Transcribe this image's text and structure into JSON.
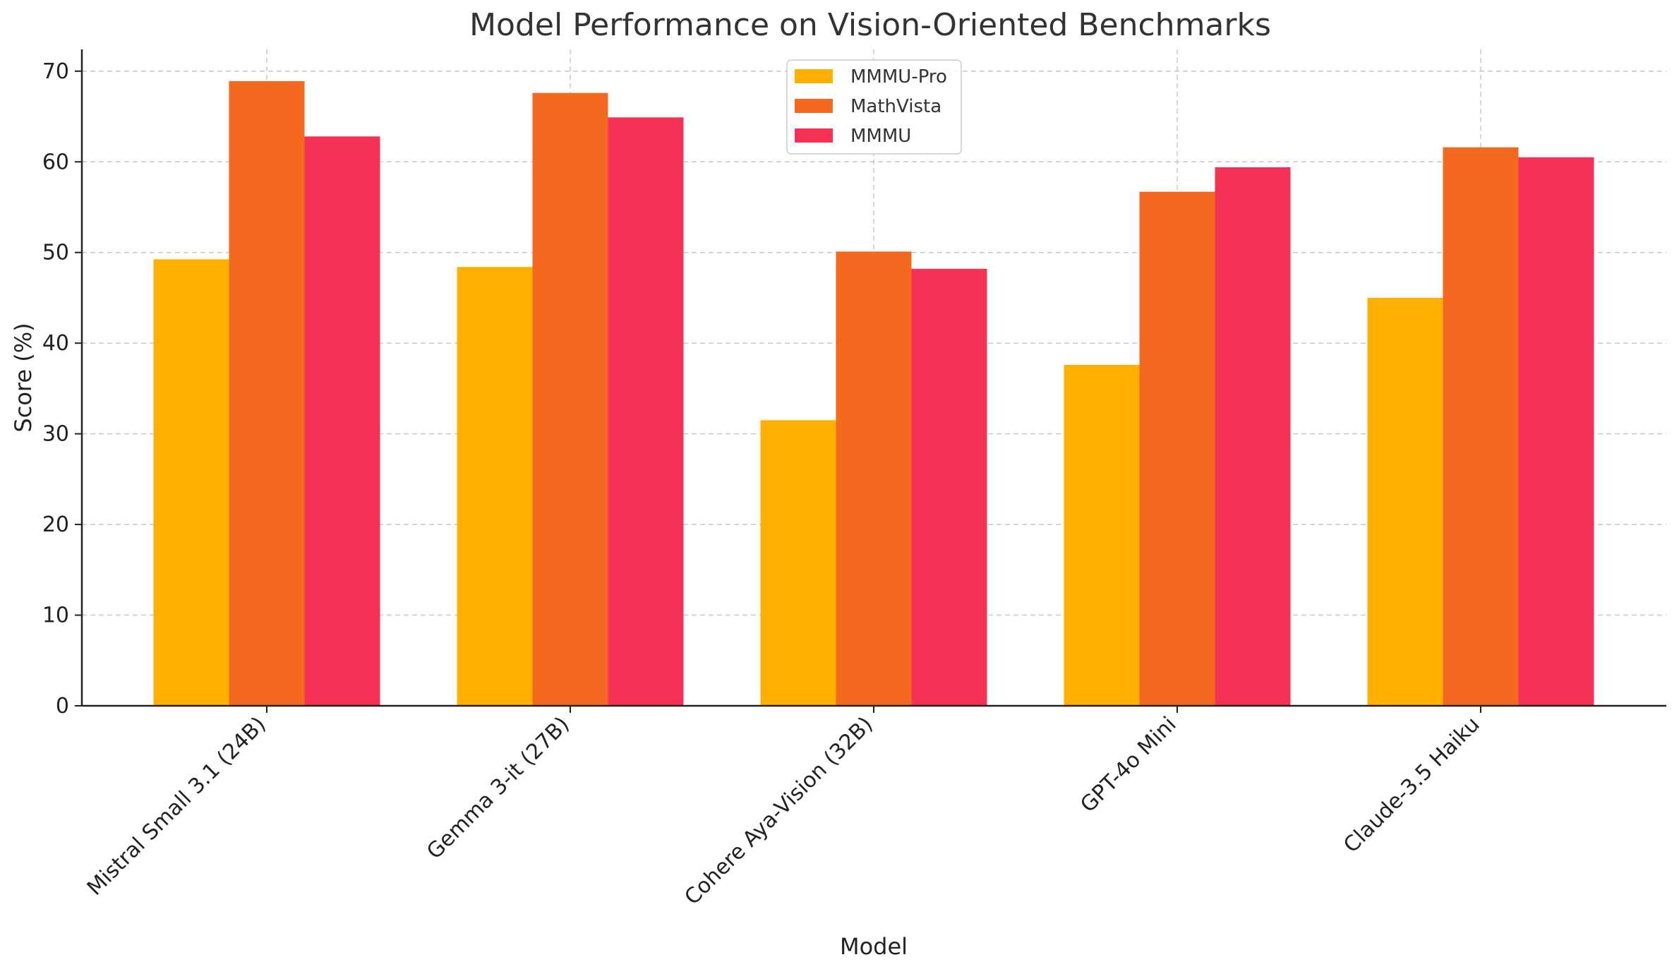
{
  "chart_data": {
    "type": "bar",
    "title": "Model Performance on Vision-Oriented Benchmarks",
    "xlabel": "Model",
    "ylabel": "Score (%)",
    "categories": [
      "Mistral Small 3.1 (24B)",
      "Gemma 3-it (27B)",
      "Cohere Aya-Vision (32B)",
      "GPT-4o Mini",
      "Claude-3.5 Haiku"
    ],
    "series": [
      {
        "name": "MMMU-Pro",
        "color": "#FFAF00",
        "values": [
          49.25,
          48.4,
          31.5,
          37.6,
          45.0
        ]
      },
      {
        "name": "MathVista",
        "color": "#F46920",
        "values": [
          68.9,
          67.6,
          50.1,
          56.7,
          61.6
        ]
      },
      {
        "name": "MMMU",
        "color": "#F53255",
        "values": [
          62.8,
          64.9,
          48.2,
          59.4,
          60.5
        ]
      }
    ],
    "ylim": [
      0,
      72.4
    ],
    "yticks": [
      0,
      10,
      20,
      30,
      40,
      50,
      60,
      70
    ],
    "grid": true,
    "legend_position": "top-center"
  }
}
